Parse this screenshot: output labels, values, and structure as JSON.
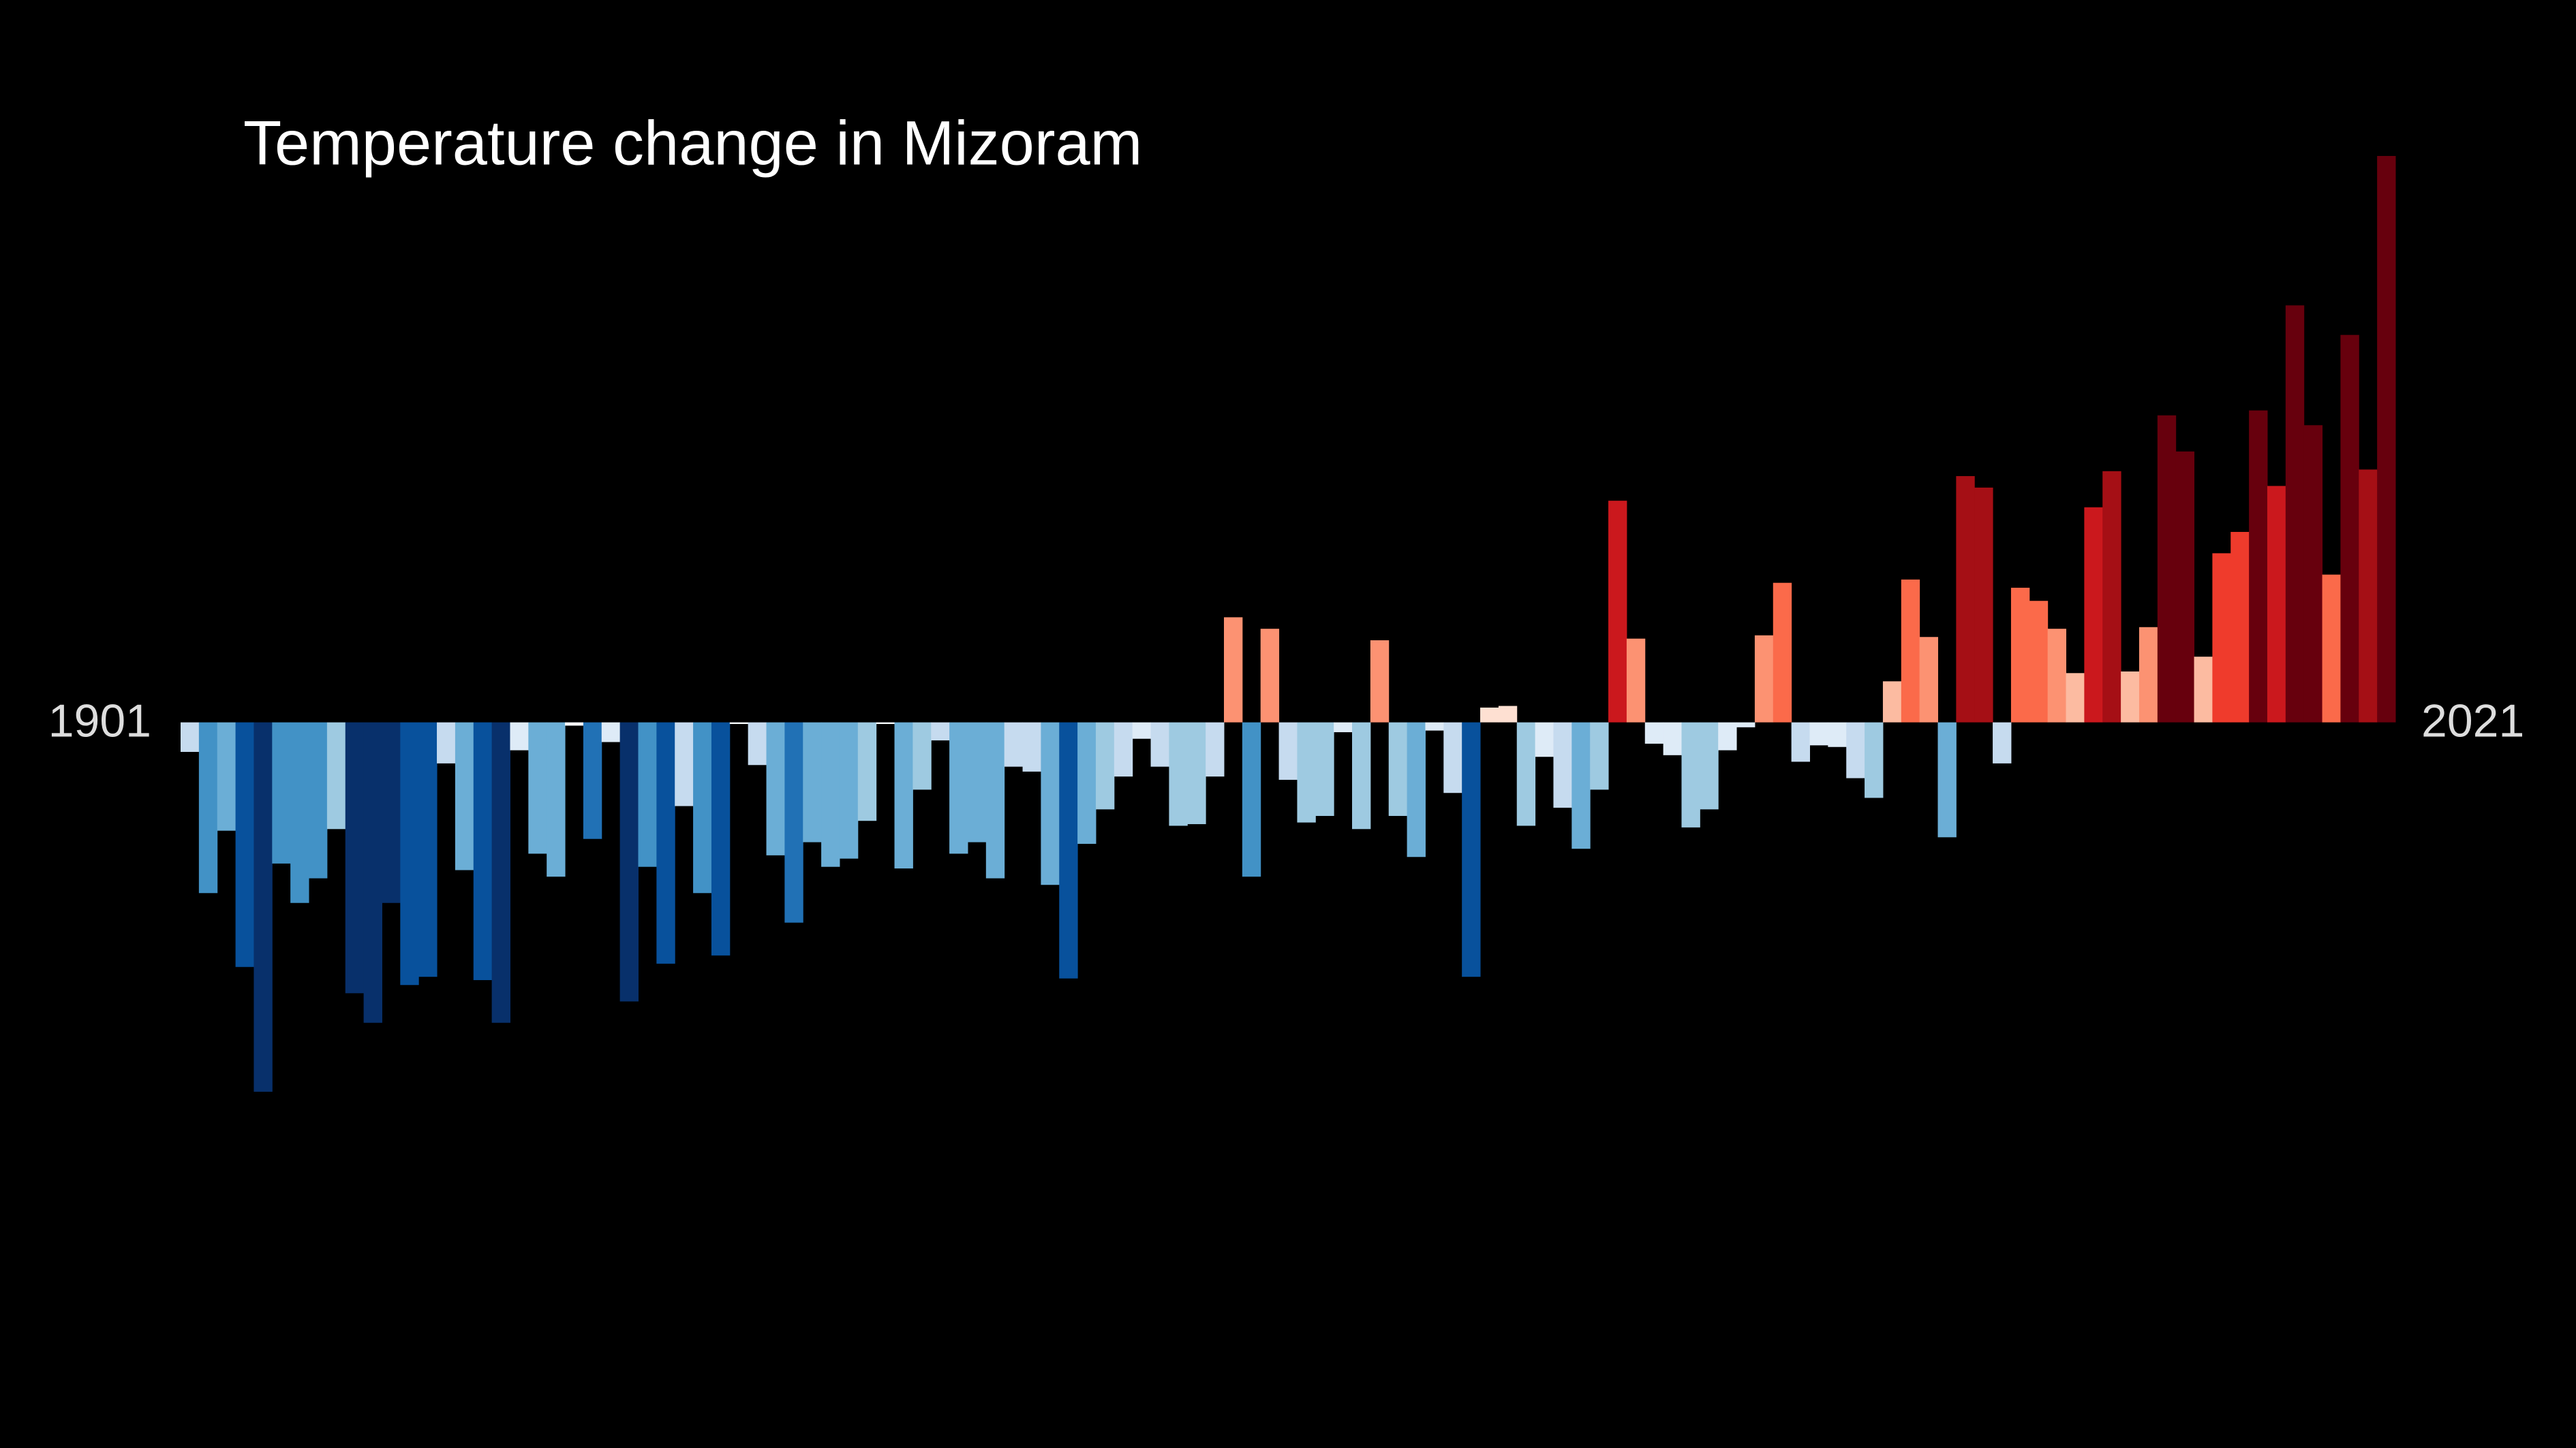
{
  "chart_data": {
    "type": "bar",
    "title": "Temperature change in Mizoram",
    "categories": [
      "1901",
      null,
      null,
      null,
      null,
      null,
      null,
      null,
      null,
      null,
      null,
      null,
      null,
      null,
      null,
      null,
      null,
      null,
      null,
      null,
      null,
      null,
      null,
      null,
      null,
      null,
      null,
      null,
      null,
      null,
      null,
      null,
      null,
      null,
      null,
      null,
      null,
      null,
      null,
      null,
      null,
      null,
      null,
      null,
      null,
      null,
      null,
      null,
      null,
      null,
      null,
      null,
      null,
      null,
      null,
      null,
      null,
      null,
      null,
      null,
      null,
      null,
      null,
      null,
      null,
      null,
      null,
      null,
      null,
      null,
      null,
      null,
      null,
      null,
      null,
      null,
      null,
      null,
      null,
      null,
      null,
      null,
      null,
      null,
      null,
      null,
      null,
      null,
      null,
      null,
      null,
      null,
      null,
      null,
      null,
      null,
      null,
      null,
      null,
      null,
      null,
      null,
      null,
      null,
      null,
      null,
      null,
      null,
      null,
      null,
      null,
      null,
      null,
      null,
      null,
      null,
      null,
      null,
      null,
      null,
      "2021"
    ],
    "values": [
      -0.18,
      -1.04,
      -0.66,
      -1.49,
      -2.25,
      -0.86,
      -1.1,
      -0.95,
      -0.65,
      -1.65,
      -1.83,
      -1.1,
      -1.6,
      -1.55,
      -0.25,
      -0.9,
      -1.57,
      -1.83,
      -0.17,
      -0.8,
      -0.94,
      -0.02,
      -0.71,
      -0.12,
      -1.7,
      -0.88,
      -1.47,
      -0.51,
      -1.04,
      -1.42,
      -0.01,
      -0.26,
      -0.81,
      -1.22,
      -0.73,
      -0.88,
      -0.83,
      -0.6,
      -0.01,
      -0.89,
      -0.41,
      -0.11,
      -0.8,
      -0.73,
      -0.95,
      -0.27,
      -0.3,
      -0.99,
      -1.56,
      -0.74,
      -0.53,
      -0.33,
      -0.1,
      -0.27,
      -0.63,
      -0.62,
      -0.33,
      0.64,
      -0.94,
      0.57,
      -0.35,
      -0.61,
      -0.57,
      -0.06,
      -0.65,
      0.5,
      -0.57,
      -0.82,
      -0.05,
      -0.43,
      -1.55,
      0.09,
      0.1,
      -0.63,
      -0.21,
      -0.52,
      -0.77,
      -0.41,
      1.35,
      0.51,
      -0.13,
      -0.2,
      -0.64,
      -0.53,
      -0.17,
      -0.03,
      0.53,
      0.85,
      -0.24,
      -0.14,
      -0.15,
      -0.34,
      -0.46,
      0.25,
      0.87,
      0.52,
      -0.7,
      1.5,
      1.43,
      -0.25,
      0.82,
      0.74,
      0.57,
      0.3,
      1.31,
      1.53,
      0.31,
      0.58,
      1.87,
      1.65,
      0.4,
      1.03,
      1.16,
      1.9,
      1.44,
      2.54,
      1.81,
      0.9,
      2.36,
      1.54,
      3.45
    ],
    "colors": [
      "#c6dbef",
      "#4292c6",
      "#6baed6",
      "#08519c",
      "#08306b",
      "#4292c6",
      "#4292c6",
      "#4292c6",
      "#9ecae1",
      "#08306b",
      "#08306b",
      "#08306b",
      "#08519c",
      "#08519c",
      "#c6dbef",
      "#6baed6",
      "#08519c",
      "#08306b",
      "#deebf7",
      "#6baed6",
      "#6baed6",
      "#f7fbff",
      "#2171b5",
      "#deebf7",
      "#08306b",
      "#4292c6",
      "#08519c",
      "#c6dbef",
      "#4292c6",
      "#08519c",
      "#f7fbff",
      "#c6dbef",
      "#6baed6",
      "#2171b5",
      "#6baed6",
      "#6baed6",
      "#6baed6",
      "#9ecae1",
      "#f7fbff",
      "#6baed6",
      "#9ecae1",
      "#c6dbef",
      "#6baed6",
      "#6baed6",
      "#6baed6",
      "#c6dbef",
      "#c6dbef",
      "#6baed6",
      "#08519c",
      "#6baed6",
      "#9ecae1",
      "#c6dbef",
      "#deebf7",
      "#c6dbef",
      "#9ecae1",
      "#9ecae1",
      "#c6dbef",
      "#fc9272",
      "#4292c6",
      "#fc9272",
      "#c6dbef",
      "#9ecae1",
      "#9ecae1",
      "#deebf7",
      "#9ecae1",
      "#fc9272",
      "#9ecae1",
      "#6baed6",
      "#deebf7",
      "#c6dbef",
      "#08519c",
      "#fee0d2",
      "#fee0d2",
      "#9ecae1",
      "#deebf7",
      "#c6dbef",
      "#6baed6",
      "#9ecae1",
      "#cb181d",
      "#fc9272",
      "#deebf7",
      "#deebf7",
      "#9ecae1",
      "#9ecae1",
      "#deebf7",
      "#deebf7",
      "#fc9272",
      "#fb6a4a",
      "#c6dbef",
      "#deebf7",
      "#deebf7",
      "#c6dbef",
      "#9ecae1",
      "#fcbba1",
      "#fb6a4a",
      "#fc9272",
      "#6baed6",
      "#a50f15",
      "#a50f15",
      "#c6dbef",
      "#fb6a4a",
      "#fb6a4a",
      "#fc9272",
      "#fcbba1",
      "#cb181d",
      "#a50f15",
      "#fcbba1",
      "#fc9272",
      "#67000d",
      "#67000d",
      "#fcbba1",
      "#ef3b2c",
      "#ef3b2c",
      "#67000d",
      "#cb181d",
      "#67000d",
      "#67000d",
      "#fb6a4a",
      "#67000d",
      "#a50f15",
      "#67000d"
    ],
    "ylim": [
      -4.42,
      4.4
    ]
  }
}
